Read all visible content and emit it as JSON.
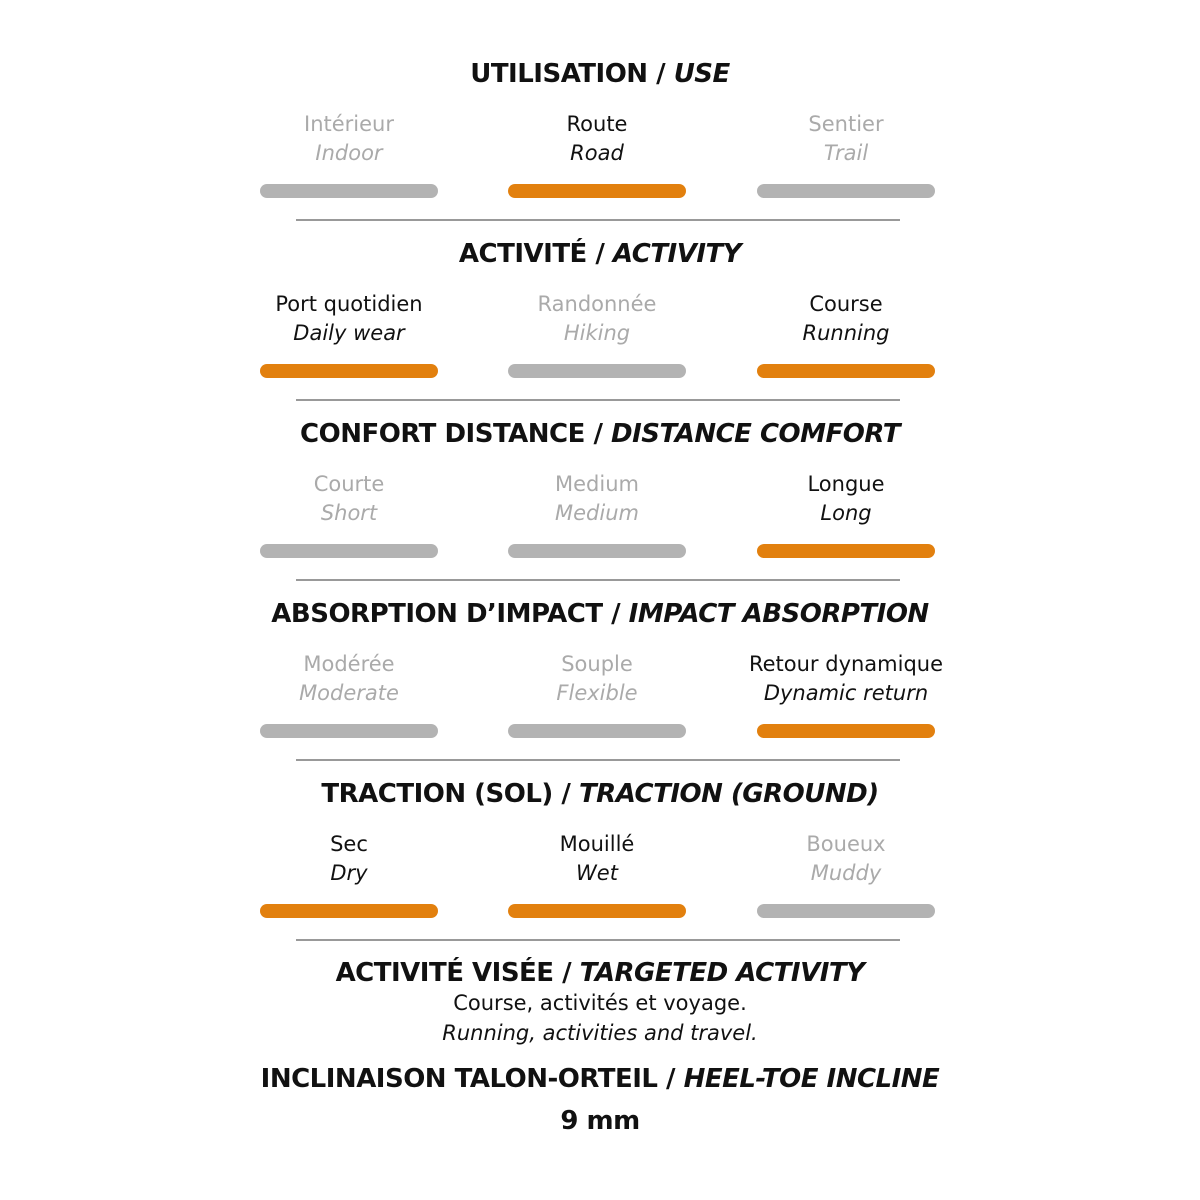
{
  "colors": {
    "active": "#e2800e",
    "inactive": "#b3b3b3",
    "inactive_text": "#aaaaaa",
    "divider": "#999999"
  },
  "sections": [
    {
      "title_fr": "UTILISATION",
      "title_en": "USE",
      "options": [
        {
          "fr": "Intérieur",
          "en": "Indoor",
          "active": false
        },
        {
          "fr": "Route",
          "en": "Road",
          "active": true
        },
        {
          "fr": "Sentier",
          "en": "Trail",
          "active": false
        }
      ]
    },
    {
      "title_fr": "ACTIVITÉ",
      "title_en": "ACTIVITY",
      "options": [
        {
          "fr": "Port quotidien",
          "en": "Daily wear",
          "active": true
        },
        {
          "fr": "Randonnée",
          "en": "Hiking",
          "active": false
        },
        {
          "fr": "Course",
          "en": "Running",
          "active": true
        }
      ]
    },
    {
      "title_fr": "CONFORT DISTANCE",
      "title_en": "DISTANCE COMFORT",
      "options": [
        {
          "fr": "Courte",
          "en": "Short",
          "active": false
        },
        {
          "fr": "Medium",
          "en": "Medium",
          "active": false
        },
        {
          "fr": "Longue",
          "en": "Long",
          "active": true
        }
      ]
    },
    {
      "title_fr": "ABSORPTION D’IMPACT",
      "title_en": "IMPACT ABSORPTION",
      "options": [
        {
          "fr": "Modérée",
          "en": "Moderate",
          "active": false
        },
        {
          "fr": "Souple",
          "en": "Flexible",
          "active": false
        },
        {
          "fr": "Retour dynamique",
          "en": "Dynamic return",
          "active": true
        }
      ]
    },
    {
      "title_fr": "TRACTION (SOL)",
      "title_en": "TRACTION (GROUND)",
      "options": [
        {
          "fr": "Sec",
          "en": "Dry",
          "active": true
        },
        {
          "fr": "Mouillé",
          "en": "Wet",
          "active": true
        },
        {
          "fr": "Boueux",
          "en": "Muddy",
          "active": false
        }
      ]
    }
  ],
  "targeted": {
    "title_fr": "ACTIVITÉ VISÉE",
    "title_en": "TARGETED ACTIVITY",
    "text_fr": "Course, activités et voyage.",
    "text_en": "Running, activities and travel."
  },
  "incline": {
    "title_fr": "INCLINAISON TALON-ORTEIL",
    "title_en": "HEEL-TOE INCLINE",
    "value": "9 mm"
  }
}
